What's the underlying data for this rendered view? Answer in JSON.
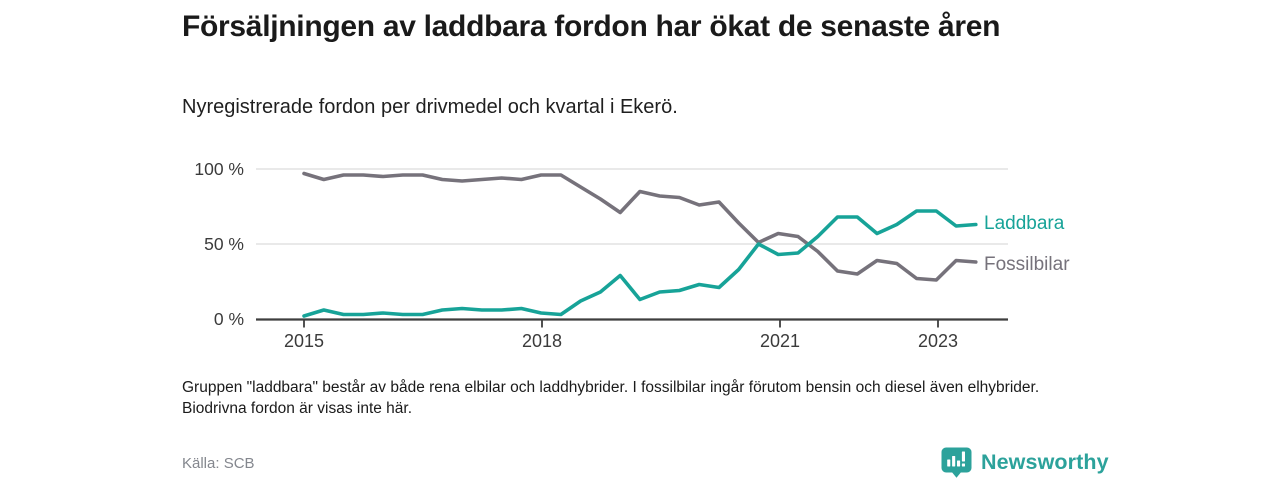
{
  "header": {
    "title": "Försäljningen av laddbara fordon har ökat de senaste åren",
    "subtitle": "Nyregistrerade fordon per drivmedel och kvartal i Ekerö."
  },
  "chart_data": {
    "type": "line",
    "unit": "%",
    "x": [
      "2015-Q1",
      "2015-Q2",
      "2015-Q3",
      "2015-Q4",
      "2016-Q1",
      "2016-Q2",
      "2016-Q3",
      "2016-Q4",
      "2017-Q1",
      "2017-Q2",
      "2017-Q3",
      "2017-Q4",
      "2018-Q1",
      "2018-Q2",
      "2018-Q3",
      "2018-Q4",
      "2019-Q1",
      "2019-Q2",
      "2019-Q3",
      "2019-Q4",
      "2020-Q1",
      "2020-Q2",
      "2020-Q3",
      "2020-Q4",
      "2021-Q1",
      "2021-Q2",
      "2021-Q3",
      "2021-Q4",
      "2022-Q1",
      "2022-Q2",
      "2022-Q3",
      "2022-Q4",
      "2023-Q1",
      "2023-Q2",
      "2023-Q3"
    ],
    "series": [
      {
        "id": "laddbara",
        "name": "Laddbara",
        "color": "#17a398",
        "values": [
          2,
          6,
          3,
          3,
          4,
          3,
          3,
          6,
          7,
          6,
          6,
          7,
          4,
          3,
          12,
          18,
          29,
          13,
          18,
          19,
          23,
          21,
          33,
          50,
          43,
          44,
          55,
          68,
          68,
          57,
          63,
          72,
          72,
          62,
          63
        ]
      },
      {
        "id": "fossilbilar",
        "name": "Fossilbilar",
        "color": "#76727b",
        "values": [
          97,
          93,
          96,
          96,
          95,
          96,
          96,
          93,
          92,
          93,
          94,
          93,
          96,
          96,
          88,
          80,
          71,
          85,
          82,
          81,
          76,
          78,
          64,
          51,
          57,
          55,
          45,
          32,
          30,
          39,
          37,
          27,
          26,
          39,
          38
        ]
      }
    ],
    "ylim": [
      0,
      100
    ],
    "y_tick_labels": [
      "100 %",
      "50 %",
      "0 %"
    ],
    "x_tick_labels": [
      "2015",
      "2018",
      "2021",
      "2023"
    ],
    "grid": "horizontal",
    "legend_position": "end-of-line"
  },
  "footer": {
    "note": "Gruppen \"laddbara\" består av både rena elbilar och laddhybrider. I fossilbilar ingår förutom bensin och diesel även elhybrider. Biodrivna fordon är visas inte här.",
    "source": "Källa: SCB"
  },
  "branding": {
    "logo_text": "Newsworthy",
    "logo_color": "#2ca29b"
  }
}
